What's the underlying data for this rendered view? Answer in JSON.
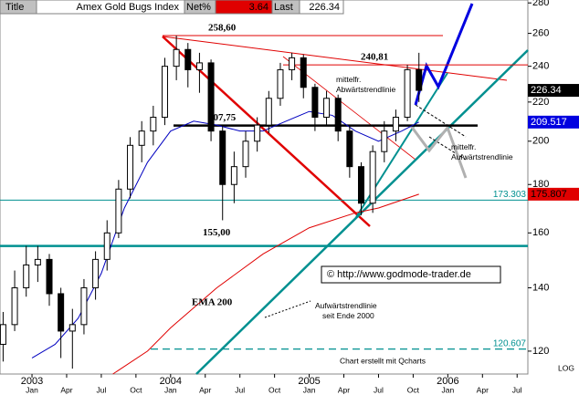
{
  "header": {
    "title_label": "Title",
    "instrument": "Amex Gold Bugs Index",
    "net_label": "Net%",
    "net_value": "3.64",
    "last_label": "Last",
    "last_value": "226.34"
  },
  "chart_data": {
    "type": "candlestick",
    "log_scale": true,
    "x": [
      -2.5,
      -1.5,
      -0.5,
      0.5,
      1.5,
      2.5,
      3.5,
      4.5,
      5.5,
      6.5,
      7.5,
      8.5,
      9.5,
      10.5,
      11.5,
      12.5,
      13.5,
      14.5,
      15.5,
      16.5,
      17.5,
      18.5,
      19.5,
      20.5,
      21.5,
      22.5,
      23.5,
      24.5,
      25.5,
      26.5,
      27.5,
      28.5,
      29.5,
      30.5,
      31.5,
      32.5,
      33.5
    ],
    "open": [
      122,
      128,
      140,
      148,
      150,
      138,
      126,
      128,
      140,
      150,
      160,
      178,
      198,
      205,
      212,
      240,
      250,
      238,
      242,
      205,
      180,
      188,
      200,
      208,
      222,
      238,
      245,
      228,
      212,
      222,
      205,
      188,
      172,
      195,
      205,
      212,
      238
    ],
    "high": [
      132,
      146,
      155,
      155,
      152,
      140,
      133,
      143,
      153,
      165,
      182,
      202,
      210,
      218,
      245,
      258.6,
      254,
      248,
      244,
      208,
      195,
      205,
      212,
      226,
      242,
      248,
      247,
      230,
      226,
      224,
      208,
      190,
      198,
      210,
      216,
      240.81,
      248
    ],
    "low": [
      117,
      126,
      137,
      142,
      134,
      118,
      115,
      125,
      136,
      146,
      158,
      174,
      190,
      198,
      208,
      232,
      228,
      225,
      200,
      165,
      172,
      183,
      195,
      204,
      218,
      232,
      222,
      205,
      208,
      200,
      183,
      167,
      168,
      190,
      200,
      210,
      220
    ],
    "close": [
      128,
      140,
      148,
      150,
      138,
      126,
      128,
      140,
      150,
      160,
      178,
      198,
      205,
      212,
      240,
      250,
      238,
      242,
      205,
      180,
      188,
      200,
      208,
      222,
      238,
      245,
      228,
      212,
      222,
      205,
      188,
      172,
      195,
      205,
      212,
      238,
      226.34
    ],
    "lines": [
      {
        "name": "EMA 200",
        "color": "#e00000",
        "x": [
          7,
          10,
          12,
          16,
          20,
          24,
          28,
          30,
          33.5
        ],
        "values": [
          113.5,
          120,
          127,
          140,
          152,
          162,
          168,
          170,
          175.807
        ],
        "value_label": "175.807"
      },
      {
        "color": "#0000c0",
        "x": [
          0,
          2,
          4,
          6,
          8,
          10,
          12,
          14,
          16,
          18,
          20,
          22,
          24,
          26,
          28,
          30,
          32,
          33.5
        ],
        "values": [
          118,
          122,
          130,
          145,
          170,
          190,
          205,
          210,
          208,
          205,
          205,
          210,
          215,
          213,
          205,
          200,
          205,
          209.517
        ],
        "value_label": "209.517"
      }
    ],
    "last_label": "226.34",
    "levels": [
      {
        "value": 258.6,
        "label": "258,60"
      },
      {
        "value": 240.81,
        "label": "240,81"
      },
      {
        "value": 207.75,
        "label": "207,75"
      },
      {
        "value": 173.303,
        "label": "173.303"
      },
      {
        "value": 155,
        "label": "155,00"
      },
      {
        "value": 120.607,
        "label": "120.607"
      }
    ],
    "xlim": [
      -2.77,
      42.93
    ],
    "ylim": [
      113.5,
      282
    ],
    "yticks": [
      120,
      140,
      160,
      180,
      200,
      220,
      240,
      260,
      280
    ],
    "xticks": [
      {
        "value": 0,
        "label": "Jan"
      },
      {
        "value": 3,
        "label": "Apr"
      },
      {
        "value": 6,
        "label": "Jul"
      },
      {
        "value": 9,
        "label": "Oct"
      },
      {
        "value": 12,
        "label": "Jan"
      },
      {
        "value": 15,
        "label": "Apr"
      },
      {
        "value": 18,
        "label": "Jul"
      },
      {
        "value": 21,
        "label": "Oct"
      },
      {
        "value": 24,
        "label": "Jan"
      },
      {
        "value": 27,
        "label": "Apr"
      },
      {
        "value": 30,
        "label": "Jul"
      },
      {
        "value": 33,
        "label": "Oct"
      },
      {
        "value": 36,
        "label": "Jan"
      },
      {
        "value": 39,
        "label": "Apr"
      },
      {
        "value": 42,
        "label": "Jul"
      }
    ],
    "year_ticks": [
      {
        "value": 0,
        "label": "2003"
      },
      {
        "value": 12,
        "label": "2004"
      },
      {
        "value": 24,
        "label": "2005"
      },
      {
        "value": 36,
        "label": "2006"
      }
    ],
    "annotations": [
      "mittelfr. Abwärtstrendlinie",
      "mittelfr. Aufwärtstrendlinie",
      "EMA 200",
      "Aufwärtstrendlinie seit Ende 2000",
      "© http://www.godmode-trader.de",
      "Chart erstellt mit Qcharts",
      "LOG"
    ]
  }
}
